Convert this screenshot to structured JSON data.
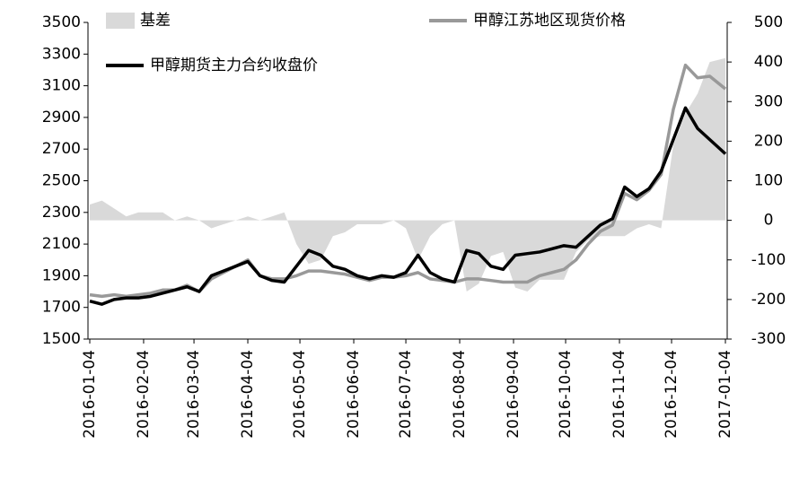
{
  "chart_data": {
    "type": "line",
    "x": [
      "2016-01-04",
      "2016-01-11",
      "2016-01-18",
      "2016-01-25",
      "2016-02-01",
      "2016-02-08",
      "2016-02-15",
      "2016-02-22",
      "2016-02-29",
      "2016-03-07",
      "2016-03-14",
      "2016-03-21",
      "2016-03-28",
      "2016-04-04",
      "2016-04-11",
      "2016-04-18",
      "2016-04-25",
      "2016-05-02",
      "2016-05-09",
      "2016-05-16",
      "2016-05-23",
      "2016-05-30",
      "2016-06-06",
      "2016-06-13",
      "2016-06-20",
      "2016-06-27",
      "2016-07-04",
      "2016-07-11",
      "2016-07-18",
      "2016-07-25",
      "2016-08-01",
      "2016-08-08",
      "2016-08-15",
      "2016-08-22",
      "2016-08-29",
      "2016-09-05",
      "2016-09-12",
      "2016-09-19",
      "2016-09-26",
      "2016-10-03",
      "2016-10-10",
      "2016-10-17",
      "2016-10-24",
      "2016-10-31",
      "2016-11-07",
      "2016-11-14",
      "2016-11-21",
      "2016-11-28",
      "2016-12-05",
      "2016-12-12",
      "2016-12-19",
      "2016-12-26",
      "2017-01-04"
    ],
    "series": [
      {
        "name": "基差",
        "color": "#d9d9d9",
        "axis": "y2",
        "kind": "area",
        "values": [
          40,
          50,
          30,
          10,
          20,
          20,
          20,
          0,
          10,
          0,
          -20,
          -10,
          0,
          10,
          0,
          10,
          20,
          -60,
          -110,
          -100,
          -40,
          -30,
          -10,
          -10,
          -10,
          0,
          -20,
          -100,
          -40,
          -10,
          0,
          -180,
          -160,
          -90,
          -80,
          -170,
          -180,
          -150,
          -150,
          -150,
          -80,
          -50,
          -40,
          -40,
          -40,
          -20,
          -10,
          -20,
          190,
          270,
          320,
          400,
          410
        ]
      },
      {
        "name": "甲醇江苏地区现货价格",
        "color": "#999999",
        "values": [
          1780,
          1770,
          1780,
          1770,
          1780,
          1790,
          1810,
          1810,
          1840,
          1800,
          1880,
          1920,
          1960,
          2000,
          1900,
          1880,
          1880,
          1900,
          1930,
          1930,
          1920,
          1910,
          1890,
          1870,
          1890,
          1890,
          1900,
          1920,
          1880,
          1870,
          1860,
          1880,
          1880,
          1870,
          1860,
          1860,
          1860,
          1900,
          1920,
          1940,
          2000,
          2100,
          2180,
          2220,
          2420,
          2380,
          2440,
          2540,
          2950,
          3230,
          3150,
          3160,
          3080
        ]
      },
      {
        "name": "甲醇期货主力合约收盘价",
        "color": "#000000",
        "values": [
          1740,
          1720,
          1750,
          1760,
          1760,
          1770,
          1790,
          1810,
          1830,
          1800,
          1900,
          1930,
          1960,
          1990,
          1900,
          1870,
          1860,
          1960,
          2060,
          2030,
          1960,
          1940,
          1900,
          1880,
          1900,
          1890,
          1920,
          2030,
          1920,
          1880,
          1860,
          2060,
          2040,
          1960,
          1940,
          2030,
          2040,
          2050,
          2070,
          2090,
          2080,
          2150,
          2220,
          2260,
          2460,
          2400,
          2450,
          2560,
          2760,
          2960,
          2830,
          2760,
          2670
        ]
      }
    ],
    "xlim": [
      "2016-01-04",
      "2017-01-04"
    ],
    "xticks": [
      "2016-01-04",
      "2016-02-04",
      "2016-03-04",
      "2016-04-04",
      "2016-05-04",
      "2016-06-04",
      "2016-07-04",
      "2016-08-04",
      "2016-09-04",
      "2016-10-04",
      "2016-11-04",
      "2016-12-04",
      "2017-01-04"
    ],
    "ylim": [
      1500,
      3500
    ],
    "yticks": [
      1500,
      1700,
      1900,
      2100,
      2300,
      2500,
      2700,
      2900,
      3100,
      3300,
      3500
    ],
    "y2lim": [
      -300,
      500
    ],
    "y2ticks": [
      -300,
      -200,
      -100,
      0,
      100,
      200,
      300,
      400,
      500
    ]
  }
}
